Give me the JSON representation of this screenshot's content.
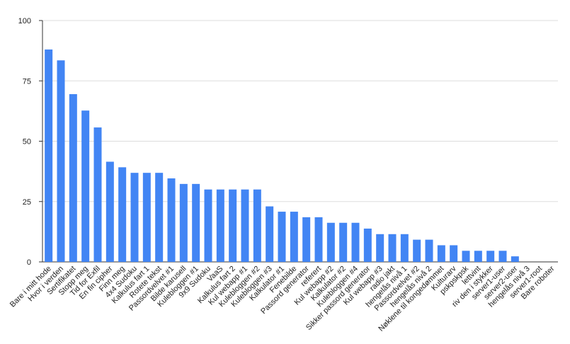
{
  "chart_data": {
    "type": "bar",
    "categories": [
      "Bare i mitt hode",
      "Hvor i verden",
      "Sertifikatet",
      "Stopp meg",
      "Tid for Exfil",
      "En fin cipher",
      "Finn meg",
      "4x4 Sudoku",
      "Kalkulus fart 1",
      "Rotete tekst",
      "Passordvelvet #1",
      "Bilde karusell",
      "Kulebloggen #1",
      "9x9 Sudoku",
      "VaaS",
      "Kalkulus fart 2",
      "Kul webapp #1",
      "Kulebloggen #2",
      "Kulebloggen #3",
      "Kalkulator #1",
      "Fenebilde",
      "Passord generator",
      "referert",
      "Kul webapp #2",
      "Kalkulator #2",
      "Kulebloggen #4",
      "Sikker passord generator",
      "Kul webapp #3",
      "radio jakt",
      "hengelås nivå 1",
      "Passordvelvet #2",
      "hengelås nivå 2",
      "Nøklene til kongedømmet",
      "Kulturarv",
      "pskpskpsk",
      "lettvint",
      "riv den i stykker",
      "server1-user",
      "server2-user",
      "hengelås nivå 3",
      "server1-root",
      "Bare roboter"
    ],
    "values": [
      88,
      83.5,
      69.5,
      62.7,
      55.7,
      41.5,
      39.2,
      36.9,
      36.9,
      36.9,
      34.6,
      32.3,
      32.3,
      30,
      30,
      30,
      30,
      30,
      23,
      20.8,
      20.8,
      18.5,
      18.5,
      16.2,
      16.2,
      16.2,
      13.8,
      11.5,
      11.5,
      11.5,
      9.2,
      9.2,
      6.9,
      6.9,
      4.6,
      4.6,
      4.6,
      4.6,
      2.3,
      0,
      0,
      0
    ],
    "color": "#4285f4",
    "ylim": [
      0,
      100
    ],
    "yticks": [
      0,
      25,
      50,
      75,
      100
    ],
    "grid": true
  }
}
